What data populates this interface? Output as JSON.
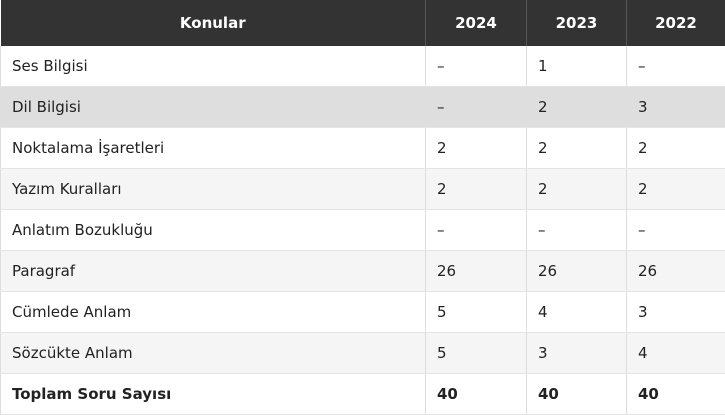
{
  "table": {
    "header": [
      "Konular",
      "2024",
      "2023",
      "2022"
    ],
    "rows": [
      [
        "Ses Bilgisi",
        "–",
        1,
        "–"
      ],
      [
        "Dil Bilgisi",
        "–",
        2,
        3
      ],
      [
        "Noktalama İşaretleri",
        2,
        2,
        2
      ],
      [
        "Yazım Kuralları",
        2,
        2,
        2
      ],
      [
        "Anlatım Bozukluğu",
        "–",
        "–",
        "–"
      ],
      [
        "Paragraf",
        26,
        26,
        26
      ],
      [
        "Cümlede Anlam",
        5,
        4,
        3
      ],
      [
        "Sözcükte Anlam",
        5,
        3,
        4
      ],
      [
        "Toplam Soru Sayısı",
        40,
        40,
        40
      ]
    ]
  }
}
